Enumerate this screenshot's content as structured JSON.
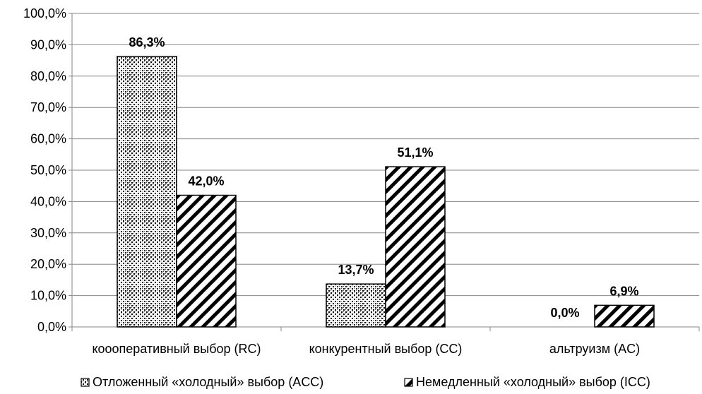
{
  "chart_data": {
    "type": "bar",
    "categories": [
      "кооопeративный выбор (RC)",
      "конкурентный выбор (CC)",
      "альтруизм (AC)"
    ],
    "series": [
      {
        "name": "Отложенный «холодный» выбор (ACC)",
        "values": [
          86.3,
          13.7,
          0.0
        ],
        "data_labels": [
          "86,3%",
          "13,7%",
          "0,0%"
        ]
      },
      {
        "name": "Немедленный «холодный» выбор (ICC)",
        "values": [
          42.0,
          51.1,
          6.9
        ],
        "data_labels": [
          "42,0%",
          "51,1%",
          "6,9%"
        ]
      }
    ],
    "ylim": [
      0,
      100
    ],
    "yticks": [
      0,
      10,
      20,
      30,
      40,
      50,
      60,
      70,
      80,
      90,
      100
    ],
    "ytick_labels": [
      "0,0%",
      "10,0%",
      "20,0%",
      "30,0%",
      "40,0%",
      "50,0%",
      "60,0%",
      "70,0%",
      "80,0%",
      "90,0%",
      "100,0%"
    ],
    "grid": true,
    "legend_position": "bottom",
    "series_fills": [
      "dotted-pattern",
      "diagonal-hatch-pattern"
    ],
    "colors": {
      "bar_stroke": "#000000",
      "grid": "#868686",
      "text": "#000000"
    }
  }
}
